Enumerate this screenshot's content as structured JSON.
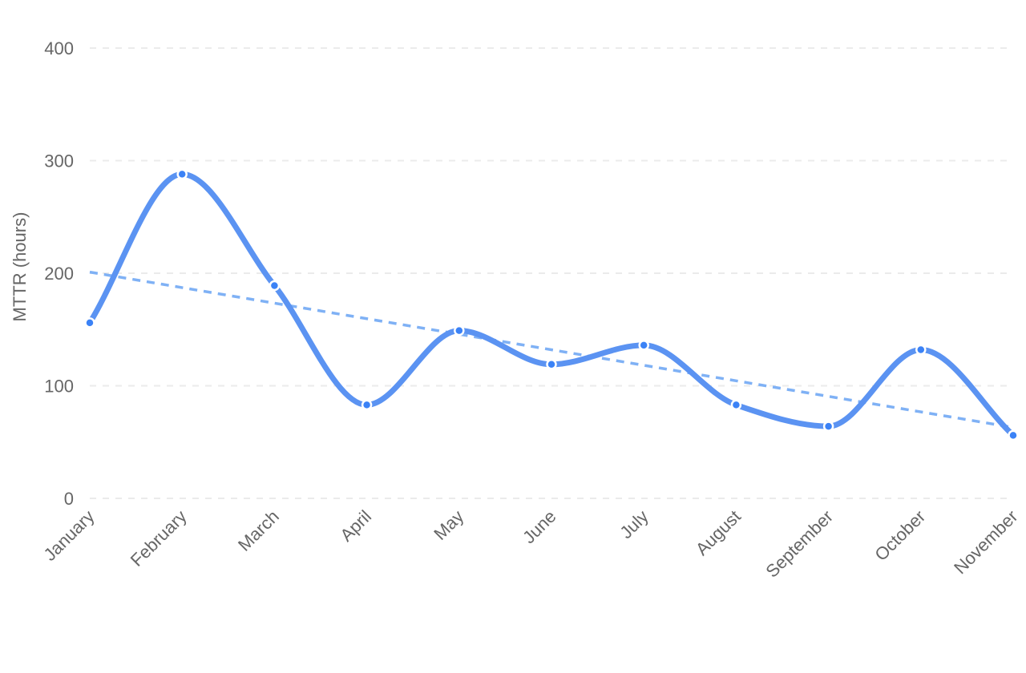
{
  "chart_data": {
    "type": "line",
    "categories": [
      "January",
      "February",
      "March",
      "April",
      "May",
      "June",
      "July",
      "August",
      "September",
      "October",
      "November"
    ],
    "series": [
      {
        "values": [
          156,
          288,
          189,
          83,
          149,
          119,
          136,
          83,
          64,
          132,
          56
        ],
        "color": "#5b93f2"
      }
    ],
    "trendline": {
      "start": 201,
      "end": 63,
      "color": "#7fb1f5",
      "style": "dashed"
    },
    "xlabel": "",
    "ylabel": "MTTR (hours)",
    "ylim": [
      0,
      400
    ],
    "yticks": [
      0,
      100,
      200,
      300,
      400
    ],
    "grid": true,
    "legend": "none",
    "marker_color": "#3b82f6",
    "line_style": "smooth"
  }
}
